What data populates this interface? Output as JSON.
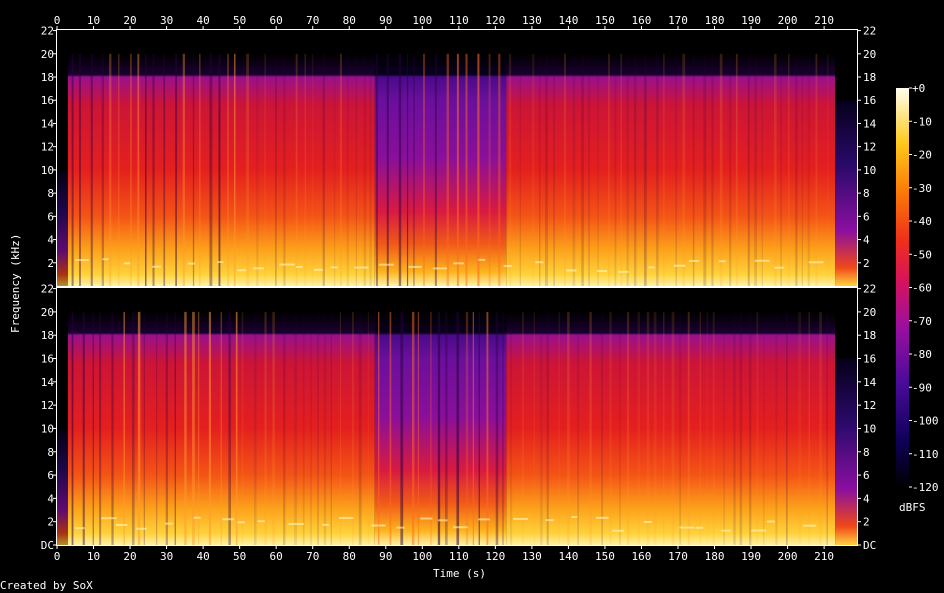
{
  "chart_data": {
    "type": "heatmap",
    "title": "",
    "xlabel": "Time (s)",
    "ylabel": "Frequency (kHz)",
    "xlim": [
      0,
      219
    ],
    "ylim": [
      0,
      22.05
    ],
    "x_ticks": [
      "0",
      "10",
      "20",
      "30",
      "40",
      "50",
      "60",
      "70",
      "80",
      "90",
      "100",
      "110",
      "120",
      "130",
      "140",
      "150",
      "160",
      "170",
      "180",
      "190",
      "200",
      "210"
    ],
    "y_ticks": [
      "DC",
      "2",
      "4",
      "6",
      "8",
      "10",
      "12",
      "14",
      "16",
      "18",
      "20",
      "22"
    ],
    "channels": 2,
    "colorbar": {
      "label": "dBFS",
      "ticks": [
        "+0",
        "-10",
        "-20",
        "-30",
        "-40",
        "-50",
        "-60",
        "-70",
        "-80",
        "-90",
        "-100",
        "-110",
        "-120"
      ],
      "range": [
        -120,
        0
      ]
    },
    "sections": [
      {
        "x": [
          0,
          3
        ],
        "level": "silence"
      },
      {
        "x": [
          3,
          50
        ],
        "level": "loud, strong transients"
      },
      {
        "x": [
          50,
          87
        ],
        "level": "loud, sustained"
      },
      {
        "x": [
          87,
          123
        ],
        "level": "quieter highs, strong transients"
      },
      {
        "x": [
          123,
          213
        ],
        "level": "loud, sustained"
      },
      {
        "x": [
          213,
          219
        ],
        "level": "fade out"
      }
    ],
    "bandwidth_khz": 20
  },
  "footer": {
    "credit": "Created by SoX"
  },
  "colors": {
    "background": "#000000",
    "axis": "#ffffff"
  }
}
